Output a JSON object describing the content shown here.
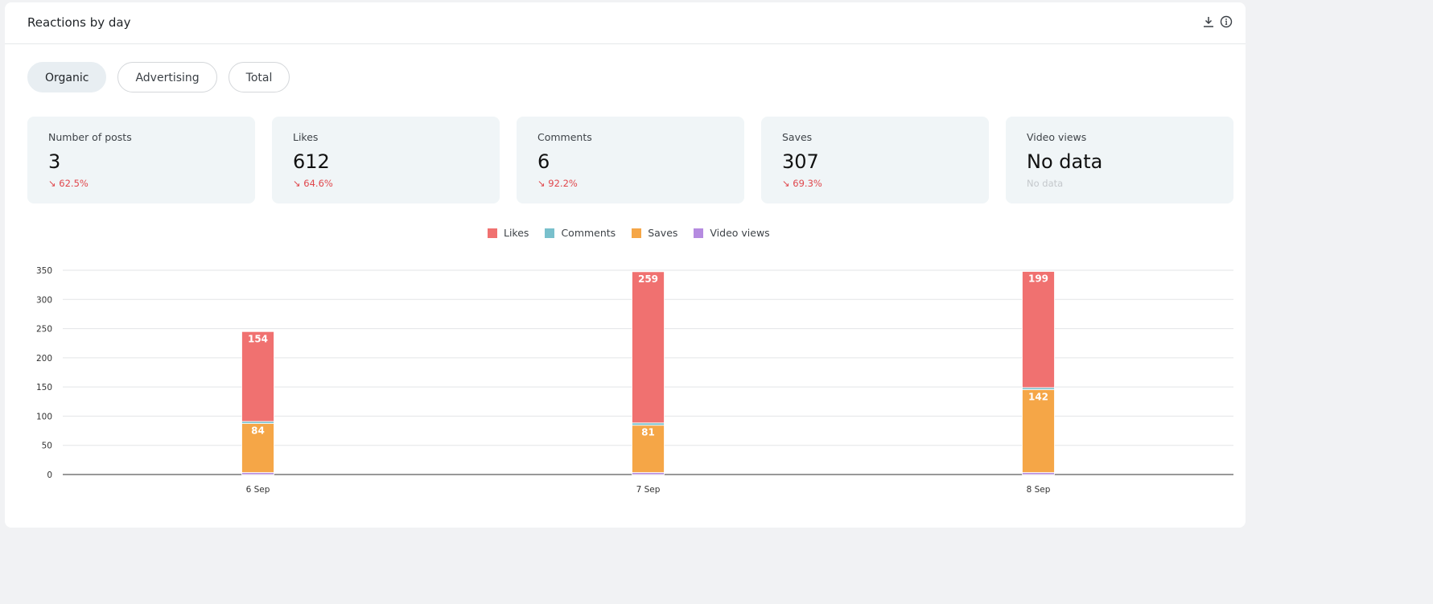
{
  "header": {
    "title": "Reactions by day",
    "download_icon": "download-icon",
    "info_icon": "info-icon"
  },
  "tabs": [
    {
      "label": "Organic",
      "active": true
    },
    {
      "label": "Advertising",
      "active": false
    },
    {
      "label": "Total",
      "active": false
    }
  ],
  "stats": [
    {
      "label": "Number of posts",
      "value": "3",
      "change": "↘ 62.5%"
    },
    {
      "label": "Likes",
      "value": "612",
      "change": "↘ 64.6%"
    },
    {
      "label": "Comments",
      "value": "6",
      "change": "↘ 92.2%"
    },
    {
      "label": "Saves",
      "value": "307",
      "change": "↘ 69.3%"
    },
    {
      "label": "Video views",
      "value": "No data",
      "change": "No data"
    }
  ],
  "chart_data": {
    "type": "bar",
    "stacked": true,
    "categories": [
      "6 Sep",
      "7 Sep",
      "8 Sep"
    ],
    "series": [
      {
        "name": "Video views",
        "color": "#b58be0",
        "values": [
          0,
          0,
          0
        ]
      },
      {
        "name": "Saves",
        "color": "#f5a647",
        "values": [
          84,
          81,
          142
        ]
      },
      {
        "name": "Comments",
        "color": "#79c0cc",
        "values": [
          1,
          4,
          1
        ]
      },
      {
        "name": "Likes",
        "color": "#f07170",
        "values": [
          154,
          259,
          199
        ]
      }
    ],
    "legend": [
      "Likes",
      "Comments",
      "Saves",
      "Video views"
    ],
    "legend_position": "top",
    "ylim": [
      0,
      350
    ],
    "yticks": [
      0,
      50,
      100,
      150,
      200,
      250,
      300,
      350
    ],
    "grid": true
  }
}
